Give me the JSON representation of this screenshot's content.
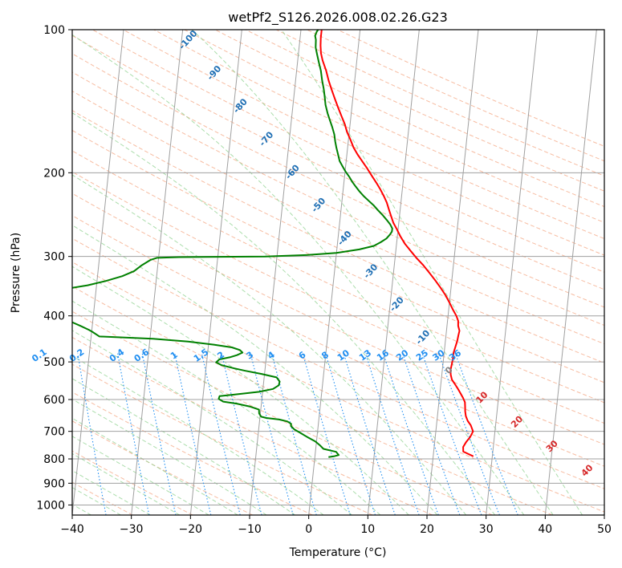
{
  "chart_data": {
    "type": "line",
    "title": "wetPf2_S126.2026.008.02.26.G23",
    "xlabel": "Temperature (°C)",
    "ylabel": "Pressure (hPa)",
    "xlim": [
      -40,
      50
    ],
    "ylim": [
      1050,
      100
    ],
    "y_scale": "log",
    "grid": true,
    "x_ticks": [
      -40,
      -30,
      -20,
      -10,
      0,
      10,
      20,
      30,
      40,
      50
    ],
    "y_ticks": [
      100,
      200,
      300,
      400,
      500,
      600,
      700,
      800,
      900,
      1000
    ],
    "colors": {
      "temperature": "#ff0000",
      "dewpoint": "#008000",
      "isotherm": "#a0a0a0",
      "dry_adiabat": "#f4a582",
      "moist_adiabat": "#8fd18f",
      "mixing_ratio": "#1f8ef1",
      "dry_adiabat_label": "#d62728",
      "moist_adiabat_label": "#1f6fb4",
      "mixing_ratio_label": "#1f8ef1"
    },
    "series": [
      {
        "key": "temperature",
        "points": [
          [
            26.8,
            790
          ],
          [
            25.8,
            780
          ],
          [
            25.0,
            772
          ],
          [
            24.9,
            755
          ],
          [
            25.3,
            738
          ],
          [
            25.9,
            720
          ],
          [
            26.3,
            700
          ],
          [
            25.8,
            680
          ],
          [
            25.2,
            665
          ],
          [
            24.8,
            650
          ],
          [
            24.6,
            635
          ],
          [
            24.5,
            620
          ],
          [
            24.4,
            608
          ],
          [
            24.0,
            595
          ],
          [
            23.4,
            580
          ],
          [
            22.9,
            568
          ],
          [
            22.3,
            555
          ],
          [
            21.8,
            545
          ],
          [
            21.5,
            532
          ],
          [
            21.4,
            520
          ],
          [
            21.5,
            505
          ],
          [
            21.6,
            490
          ],
          [
            21.6,
            478
          ],
          [
            21.8,
            465
          ],
          [
            22.0,
            452
          ],
          [
            22.1,
            440
          ],
          [
            22.2,
            430
          ],
          [
            21.9,
            420
          ],
          [
            21.8,
            410
          ],
          [
            21.4,
            400
          ],
          [
            20.7,
            388
          ],
          [
            20.0,
            375
          ],
          [
            19.2,
            362
          ],
          [
            18.3,
            350
          ],
          [
            17.3,
            338
          ],
          [
            16.1,
            325
          ],
          [
            14.9,
            313
          ],
          [
            13.6,
            302
          ],
          [
            12.5,
            292
          ],
          [
            11.4,
            282
          ],
          [
            10.5,
            272
          ],
          [
            9.8,
            263
          ],
          [
            9.1,
            255
          ],
          [
            8.6,
            247
          ],
          [
            8.1,
            239
          ],
          [
            7.6,
            231
          ],
          [
            7.0,
            224
          ],
          [
            6.3,
            217
          ],
          [
            5.5,
            210
          ],
          [
            4.6,
            203
          ],
          [
            3.7,
            196
          ],
          [
            2.7,
            189
          ],
          [
            1.8,
            183
          ],
          [
            1.0,
            177
          ],
          [
            0.3,
            170
          ],
          [
            -0.4,
            164
          ],
          [
            -0.9,
            158
          ],
          [
            -1.6,
            152
          ],
          [
            -2.3,
            146
          ],
          [
            -3.0,
            140
          ],
          [
            -3.7,
            134
          ],
          [
            -4.4,
            128
          ],
          [
            -5.0,
            122
          ],
          [
            -5.8,
            116
          ],
          [
            -6.2,
            112
          ],
          [
            -6.4,
            108
          ],
          [
            -6.5,
            104
          ],
          [
            -6.5,
            100
          ]
        ]
      },
      {
        "key": "dewpoint",
        "points": [
          [
            2.3,
            793
          ],
          [
            3.2,
            790
          ],
          [
            4.0,
            785
          ],
          [
            3.5,
            773
          ],
          [
            1.3,
            762
          ],
          [
            0.7,
            750
          ],
          [
            -0.2,
            735
          ],
          [
            -1.6,
            720
          ],
          [
            -2.9,
            705
          ],
          [
            -4.0,
            693
          ],
          [
            -4.6,
            682
          ],
          [
            -4.6,
            675
          ],
          [
            -5.3,
            667
          ],
          [
            -6.7,
            661
          ],
          [
            -8.9,
            656
          ],
          [
            -9.8,
            652
          ],
          [
            -10.2,
            642
          ],
          [
            -10.3,
            630
          ],
          [
            -11.8,
            621
          ],
          [
            -14.2,
            612
          ],
          [
            -16.5,
            606
          ],
          [
            -17.3,
            598
          ],
          [
            -17.2,
            590
          ],
          [
            -14.8,
            586
          ],
          [
            -10.6,
            578
          ],
          [
            -8.3,
            570
          ],
          [
            -7.4,
            560
          ],
          [
            -7.3,
            550
          ],
          [
            -7.9,
            539
          ],
          [
            -10.5,
            530
          ],
          [
            -13.3,
            522
          ],
          [
            -15.2,
            516
          ],
          [
            -17.4,
            508
          ],
          [
            -18.4,
            501
          ],
          [
            -17.9,
            494
          ],
          [
            -16.2,
            489
          ],
          [
            -15.0,
            484
          ],
          [
            -14.1,
            478
          ],
          [
            -14.6,
            472
          ],
          [
            -16.0,
            466
          ],
          [
            -19.1,
            460
          ],
          [
            -23.5,
            453
          ],
          [
            -29.5,
            447
          ],
          [
            -38.6,
            442
          ],
          [
            -39.9,
            432
          ],
          [
            -40.5,
            428
          ],
          [
            -42.0,
            420
          ],
          [
            -44.0,
            410
          ],
          [
            -44.5,
            400
          ],
          [
            -44.5,
            350
          ],
          [
            -41.5,
            345
          ],
          [
            -38.6,
            338
          ],
          [
            -35.8,
            330
          ],
          [
            -33.9,
            322
          ],
          [
            -32.7,
            313
          ],
          [
            -31.3,
            305
          ],
          [
            -30.3,
            302
          ],
          [
            -26.5,
            301
          ],
          [
            -12.0,
            300
          ],
          [
            -5.0,
            298
          ],
          [
            0.0,
            295
          ],
          [
            3.8,
            290
          ],
          [
            6.2,
            285
          ],
          [
            7.3,
            280
          ],
          [
            8.2,
            275
          ],
          [
            8.7,
            270
          ],
          [
            9.0,
            266
          ],
          [
            9.0,
            262
          ],
          [
            8.6,
            257
          ],
          [
            8.0,
            252
          ],
          [
            7.2,
            246
          ],
          [
            6.3,
            240
          ],
          [
            5.4,
            234
          ],
          [
            4.5,
            229
          ],
          [
            3.6,
            224
          ],
          [
            2.8,
            219
          ],
          [
            2.1,
            214
          ],
          [
            1.4,
            209
          ],
          [
            0.8,
            204
          ],
          [
            0.1,
            199
          ],
          [
            -0.5,
            194
          ],
          [
            -1.1,
            189
          ],
          [
            -1.5,
            183
          ],
          [
            -1.9,
            177
          ],
          [
            -2.2,
            172
          ],
          [
            -2.5,
            166
          ],
          [
            -3.0,
            160
          ],
          [
            -3.5,
            155
          ],
          [
            -4.0,
            150
          ],
          [
            -4.5,
            144
          ],
          [
            -4.8,
            138
          ],
          [
            -5.1,
            133
          ],
          [
            -5.5,
            128
          ],
          [
            -5.9,
            122
          ],
          [
            -6.4,
            117
          ],
          [
            -6.8,
            113
          ],
          [
            -7.2,
            109
          ],
          [
            -7.3,
            105
          ],
          [
            -7.5,
            103
          ],
          [
            -7.3,
            101
          ],
          [
            -7.1,
            100
          ]
        ]
      }
    ],
    "dry_adiabat_labels": [
      "10",
      "20",
      "30",
      "40"
    ],
    "moist_adiabat_labels": [
      "-100",
      "-90",
      "-80",
      "-70",
      "-60",
      "-50",
      "-40",
      "-30",
      "-20",
      "-10",
      "0"
    ],
    "moist_adiabat_label_values": [
      -100,
      -90,
      -80,
      -70,
      -60,
      -50,
      -40,
      -30,
      -20,
      -10,
      0
    ],
    "mixing_ratio_labels": [
      "0.1",
      "0.2",
      "0.4",
      "0.6",
      "1",
      "1.5",
      "2",
      "3",
      "4",
      "6",
      "8",
      "10",
      "13",
      "16",
      "20",
      "25",
      "30",
      "36"
    ],
    "mixing_ratio_label_values": [
      0.1,
      0.2,
      0.4,
      0.6,
      1,
      1.5,
      2,
      3,
      4,
      6,
      8,
      10,
      13,
      16,
      20,
      25,
      30,
      36
    ]
  }
}
